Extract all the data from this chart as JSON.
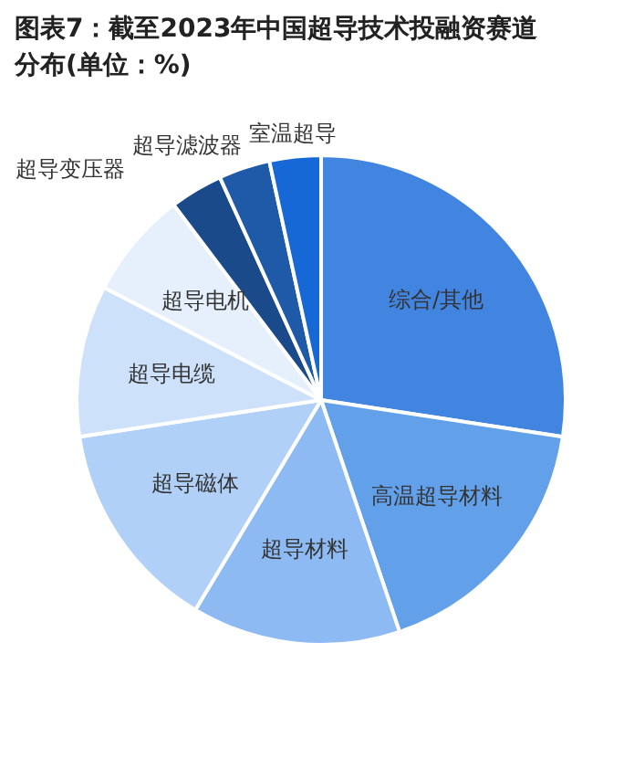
{
  "chart_data": {
    "type": "pie",
    "title": "图表7：截至2023年中国超导技术投融资赛道分布(单位：%)",
    "categories": [
      "综合/其他",
      "高温超导材料",
      "超导材料",
      "超导磁体",
      "超导电缆",
      "超导电机",
      "超导变压器",
      "超导滤波器",
      "室温超导"
    ],
    "values": [
      27.4,
      17.4,
      13.8,
      14.0,
      10.0,
      7.1,
      3.5,
      3.4,
      3.4
    ],
    "colors": [
      "#4285e0",
      "#62a0ea",
      "#8dbaf2",
      "#b0d0f7",
      "#cde2fa",
      "#e6f0fc",
      "#1a4a8a",
      "#1f5aa8",
      "#1668d6"
    ],
    "legend": false
  }
}
